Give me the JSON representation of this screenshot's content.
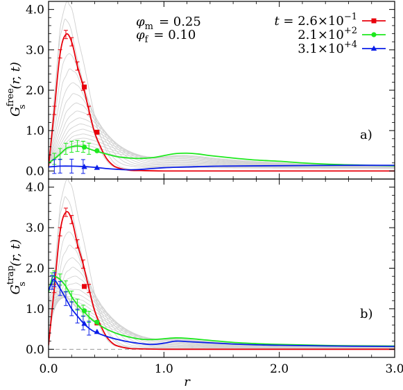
{
  "chart_data": [
    {
      "type": "line",
      "panel": "a)",
      "xlabel": "",
      "ylabel_base": "G",
      "ylabel_sub": "s",
      "ylabel_sup": "free",
      "ylabel_args": "(r, t)",
      "xlim": [
        0,
        3
      ],
      "ylim": [
        -0.2,
        4.2
      ],
      "yticks": [
        0,
        1,
        2,
        3,
        4
      ],
      "ytick_labels": [
        "0.0",
        "1.0",
        "2.0",
        "3.0",
        "4.0"
      ],
      "xticks": [
        0,
        1,
        2,
        3
      ],
      "params": [
        {
          "sym": "φ",
          "sub": "m",
          "value": "= 0.25"
        },
        {
          "sym": "φ",
          "sub": "f",
          "value": "= 0.10"
        }
      ],
      "legend": [
        {
          "prefix": "t = ",
          "mantissa": "2.6×10",
          "exponent": "−1",
          "color": "#e8000b",
          "marker": "square"
        },
        {
          "mantissa": "2.1×10",
          "exponent": "+2",
          "color": "#1ee81e",
          "marker": "circle"
        },
        {
          "mantissa": "3.1×10",
          "exponent": "+4",
          "color": "#0a1ee8",
          "marker": "triangle"
        }
      ],
      "series": [
        {
          "name": "2.6×10^-1",
          "color": "#e8000b",
          "x": [
            0.0,
            0.05,
            0.1,
            0.15,
            0.2,
            0.25,
            0.3,
            0.35,
            0.4,
            0.45,
            0.5,
            0.55,
            0.6,
            0.7,
            0.8,
            1.0,
            1.5,
            2.0,
            3.0
          ],
          "y": [
            0.1,
            1.5,
            2.9,
            3.38,
            3.2,
            2.6,
            2.1,
            1.5,
            0.95,
            0.6,
            0.32,
            0.16,
            0.08,
            0.02,
            0.01,
            0.0,
            0.0,
            0.0,
            0.0
          ],
          "marker_x": [
            0.31,
            0.42
          ],
          "marker_y": [
            2.08,
            0.96
          ]
        },
        {
          "name": "2.1×10^+2",
          "color": "#1ee81e",
          "x": [
            0.0,
            0.05,
            0.1,
            0.15,
            0.2,
            0.25,
            0.3,
            0.35,
            0.4,
            0.5,
            0.6,
            0.7,
            0.8,
            0.9,
            1.0,
            1.1,
            1.2,
            1.3,
            1.4,
            1.6,
            1.8,
            2.0,
            2.2,
            2.5,
            2.8,
            3.0
          ],
          "y": [
            0.2,
            0.3,
            0.42,
            0.55,
            0.6,
            0.62,
            0.6,
            0.55,
            0.5,
            0.42,
            0.35,
            0.32,
            0.31,
            0.33,
            0.38,
            0.43,
            0.44,
            0.42,
            0.38,
            0.32,
            0.27,
            0.24,
            0.2,
            0.16,
            0.14,
            0.13
          ],
          "marker_x": [
            0.31,
            0.42
          ],
          "marker_y": [
            0.59,
            0.5
          ]
        },
        {
          "name": "3.1×10^+4",
          "color": "#0a1ee8",
          "x": [
            0.0,
            0.05,
            0.1,
            0.2,
            0.3,
            0.4,
            0.5,
            0.6,
            0.7,
            0.8,
            0.9,
            1.0,
            1.2,
            1.5,
            2.0,
            2.5,
            3.0
          ],
          "y": [
            0.1,
            0.11,
            0.12,
            0.12,
            0.11,
            0.09,
            0.06,
            0.04,
            0.03,
            0.04,
            0.06,
            0.08,
            0.1,
            0.12,
            0.13,
            0.14,
            0.14
          ],
          "marker_x": [
            0.31,
            0.42
          ],
          "marker_y": [
            0.1,
            0.08
          ]
        }
      ]
    },
    {
      "type": "line",
      "panel": "b)",
      "xlabel": "r",
      "ylabel_base": "G",
      "ylabel_sub": "s",
      "ylabel_sup": "trap",
      "ylabel_args": "(r, t)",
      "xlim": [
        0,
        3
      ],
      "ylim": [
        -0.2,
        4.2
      ],
      "yticks": [
        0,
        1,
        2,
        3,
        4
      ],
      "ytick_labels": [
        "0.0",
        "1.0",
        "2.0",
        "3.0",
        "4.0"
      ],
      "xticks": [
        0,
        1,
        2,
        3
      ],
      "xtick_labels": [
        "0.0",
        "1.0",
        "2.0",
        "3.0"
      ],
      "series": [
        {
          "name": "2.6×10^-1",
          "color": "#e8000b",
          "x": [
            0.0,
            0.05,
            0.1,
            0.15,
            0.2,
            0.25,
            0.3,
            0.35,
            0.4,
            0.45,
            0.5,
            0.55,
            0.6,
            0.7,
            0.8,
            1.0,
            1.5,
            2.0,
            3.0
          ],
          "y": [
            0.1,
            1.5,
            2.9,
            3.38,
            3.2,
            2.6,
            2.1,
            1.5,
            0.95,
            0.6,
            0.32,
            0.16,
            0.08,
            0.02,
            0.01,
            0.0,
            0.0,
            0.0,
            0.0
          ],
          "marker_x": [
            0.31,
            0.42
          ],
          "marker_y": [
            1.55,
            0.65
          ]
        },
        {
          "name": "2.1×10^+2",
          "color": "#1ee81e",
          "x": [
            0.0,
            0.03,
            0.05,
            0.1,
            0.15,
            0.2,
            0.25,
            0.3,
            0.35,
            0.4,
            0.5,
            0.6,
            0.7,
            0.8,
            0.9,
            1.0,
            1.1,
            1.2,
            1.4,
            1.6,
            1.8,
            2.0,
            2.5,
            3.0
          ],
          "y": [
            1.4,
            1.75,
            1.8,
            1.72,
            1.55,
            1.3,
            1.1,
            0.95,
            0.8,
            0.68,
            0.5,
            0.38,
            0.3,
            0.25,
            0.24,
            0.26,
            0.28,
            0.27,
            0.22,
            0.17,
            0.14,
            0.12,
            0.09,
            0.08
          ],
          "marker_x": [
            0.31,
            0.42
          ],
          "marker_y": [
            0.95,
            0.67
          ]
        },
        {
          "name": "3.1×10^+4",
          "color": "#0a1ee8",
          "x": [
            0.0,
            0.03,
            0.05,
            0.1,
            0.15,
            0.2,
            0.25,
            0.3,
            0.35,
            0.4,
            0.5,
            0.6,
            0.7,
            0.8,
            0.9,
            1.0,
            1.1,
            1.2,
            1.4,
            1.6,
            1.8,
            2.0,
            2.5,
            3.0
          ],
          "y": [
            1.45,
            1.65,
            1.72,
            1.5,
            1.25,
            1.0,
            0.82,
            0.65,
            0.52,
            0.43,
            0.32,
            0.24,
            0.18,
            0.14,
            0.12,
            0.15,
            0.2,
            0.19,
            0.16,
            0.13,
            0.11,
            0.1,
            0.08,
            0.07
          ],
          "marker_x": [
            0.31,
            0.42
          ],
          "marker_y": [
            0.63,
            0.43
          ]
        }
      ]
    }
  ]
}
